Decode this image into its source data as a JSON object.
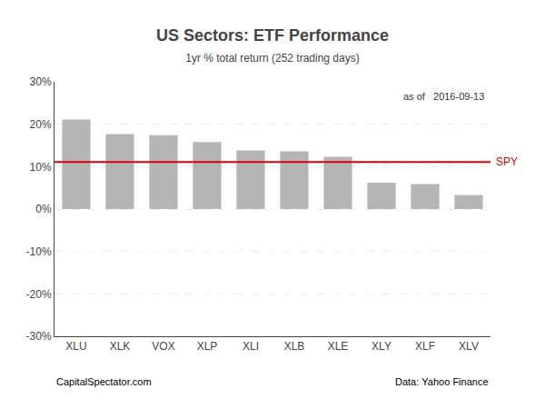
{
  "chart_data": {
    "type": "bar",
    "title": "US Sectors: ETF Performance",
    "subtitle": "1yr % total return (252 trading days)",
    "annotation": "as of   2016-09-13",
    "footer": [
      "CapitalSpectator.com",
      "Data: Yahoo Finance"
    ],
    "categories": [
      "XLU",
      "XLK",
      "VOX",
      "XLP",
      "XLI",
      "XLB",
      "XLE",
      "XLY",
      "XLF",
      "XLV"
    ],
    "values": [
      0.211,
      0.177,
      0.174,
      0.158,
      0.138,
      0.136,
      0.123,
      0.062,
      0.059,
      0.033
    ],
    "color": "#b5b5b5",
    "hline": {
      "value": 0.111,
      "label": "SPY",
      "color": "#dd0000"
    },
    "ylim": [
      -0.3,
      0.3
    ],
    "yticks": [
      {
        "value": -0.3,
        "label": "-30%"
      },
      {
        "value": -0.2,
        "label": "-20%"
      },
      {
        "value": -0.1,
        "label": "-10%"
      },
      {
        "value": 0.0,
        "label": "0%"
      },
      {
        "value": 0.1,
        "label": "10%"
      },
      {
        "value": 0.2,
        "label": "20%"
      },
      {
        "value": 0.3,
        "label": "30%"
      }
    ],
    "grid": true
  }
}
